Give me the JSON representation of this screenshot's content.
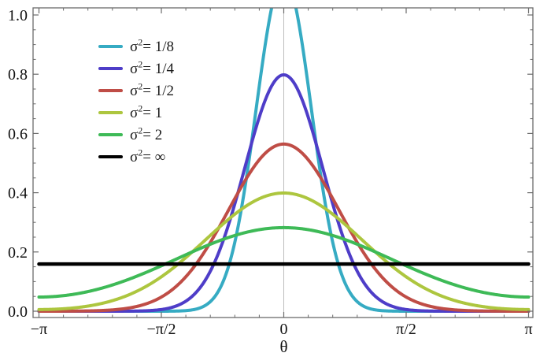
{
  "figure": {
    "background": "#ffffff",
    "frame_color": "#6b6b6b",
    "tick_color": "#6b6b6b",
    "grid_color": "#bdbdbd",
    "label_color": "#111111"
  },
  "chart_data": {
    "type": "line",
    "title": "",
    "xlabel": "θ",
    "ylabel": "",
    "description": "Wrapped normal probability density functions on the circle for several variances; the black line is the uniform limit 1/(2π)",
    "x_axis": {
      "unit": "radians",
      "min_pi": -1,
      "max_pi": 1,
      "major_tick_values_pi": [
        -1,
        -0.5,
        0,
        0.5,
        1
      ],
      "major_tick_labels": [
        "−π",
        "−π/2",
        "0",
        "π/2",
        "π"
      ],
      "minor_tick_step_pi": 0.1
    },
    "y_axis": {
      "min": 0,
      "max": 1,
      "major_tick_values": [
        0,
        0.2,
        0.4,
        0.6,
        0.8,
        1.0
      ],
      "major_tick_labels": [
        "0.0",
        "0.2",
        "0.4",
        "0.6",
        "0.8",
        "1.0"
      ],
      "minor_tick_step": 0.05
    },
    "gridlines_x_pi": [
      0
    ],
    "legend_position": "upper-left-inside",
    "legend": {
      "symbol_base": "σ",
      "symbol_sup": "2",
      "equals": "= "
    },
    "sample_x_pi": [
      -1,
      -0.875,
      -0.75,
      -0.625,
      -0.5,
      -0.375,
      -0.25,
      -0.125,
      0,
      0.125,
      0.25,
      0.375,
      0.5,
      0.625,
      0.75,
      0.875,
      1
    ],
    "series": [
      {
        "name": "sigma2-1/8",
        "legend_value": "1/8",
        "sigma2": 0.125,
        "uniform": false,
        "color": "#36abc3",
        "line_width": 4,
        "peak": 1.1284,
        "values": [
          0,
          0,
          0,
          0,
          0.0001,
          0.0044,
          0.0957,
          0.609,
          1.1284,
          0.609,
          0.0957,
          0.0044,
          0.0001,
          0,
          0,
          0,
          0
        ]
      },
      {
        "name": "sigma2-1/4",
        "legend_value": "1/4",
        "sigma2": 0.25,
        "uniform": false,
        "color": "#4e3dc8",
        "line_width": 4,
        "peak": 0.7979,
        "values": [
          0,
          0,
          0,
          0.0004,
          0.0057,
          0.0497,
          0.2323,
          0.5861,
          0.7979,
          0.5861,
          0.2323,
          0.0497,
          0.0057,
          0.0004,
          0,
          0,
          0
        ]
      },
      {
        "name": "sigma2-1/2",
        "legend_value": "1/2",
        "sigma2": 0.5,
        "uniform": false,
        "color": "#bf4d46",
        "line_width": 4,
        "peak": 0.5642,
        "values": [
          0.0001,
          0.0003,
          0.0022,
          0.012,
          0.0478,
          0.1408,
          0.3045,
          0.4836,
          0.5642,
          0.4836,
          0.3045,
          0.1408,
          0.0478,
          0.012,
          0.0022,
          0.0003,
          0.0001
        ]
      },
      {
        "name": "sigma2-1",
        "legend_value": "1",
        "sigma2": 1,
        "uniform": false,
        "color": "#adc63f",
        "line_width": 4,
        "peak": 0.3989,
        "values": [
          0.0057,
          0.0099,
          0.025,
          0.0581,
          0.1162,
          0.1993,
          0.2931,
          0.3693,
          0.3989,
          0.3693,
          0.2931,
          0.1993,
          0.1162,
          0.0581,
          0.025,
          0.0099,
          0.0057
        ]
      },
      {
        "name": "sigma2-2",
        "legend_value": "2",
        "sigma2": 2,
        "uniform": false,
        "color": "#3eba57",
        "line_width": 4,
        "peak": 0.2821,
        "values": [
          0.0478,
          0.0551,
          0.0764,
          0.1103,
          0.1534,
          0.1998,
          0.2419,
          0.2715,
          0.2821,
          0.2715,
          0.2419,
          0.1998,
          0.1534,
          0.1103,
          0.0764,
          0.0551,
          0.0478
        ]
      },
      {
        "name": "sigma2-infinity",
        "legend_value": "∞",
        "sigma2": null,
        "uniform": true,
        "uniform_value": 0.1592,
        "color": "#000000",
        "line_width": 4.5,
        "peak": 0.1592,
        "values": [
          0.1592,
          0.1592,
          0.1592,
          0.1592,
          0.1592,
          0.1592,
          0.1592,
          0.1592,
          0.1592,
          0.1592,
          0.1592,
          0.1592,
          0.1592,
          0.1592,
          0.1592,
          0.1592,
          0.1592
        ]
      }
    ]
  }
}
